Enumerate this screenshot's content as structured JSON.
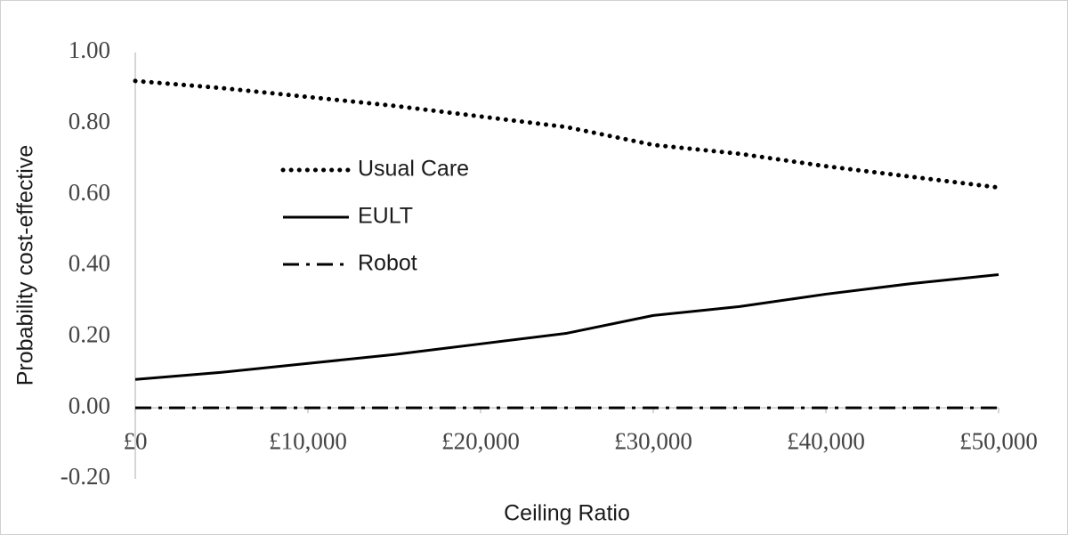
{
  "chart_data": {
    "type": "line",
    "x_label": "Ceiling Ratio",
    "y_label": "Probability cost-effective",
    "x": [
      0,
      5000,
      10000,
      15000,
      20000,
      25000,
      30000,
      35000,
      40000,
      45000,
      50000
    ],
    "series": [
      {
        "name": "Usual Care",
        "color": "#000000",
        "style": "dotted",
        "values": [
          0.92,
          0.9,
          0.875,
          0.85,
          0.82,
          0.79,
          0.74,
          0.715,
          0.68,
          0.65,
          0.62
        ]
      },
      {
        "name": "EULT",
        "color": "#000000",
        "style": "solid",
        "values": [
          0.08,
          0.1,
          0.125,
          0.15,
          0.18,
          0.21,
          0.26,
          0.285,
          0.32,
          0.35,
          0.375
        ]
      },
      {
        "name": "Robot",
        "color": "#000000",
        "style": "dash-dot",
        "values": [
          0,
          0,
          0,
          0,
          0,
          0,
          0,
          0,
          0,
          0,
          0
        ]
      }
    ],
    "xlim": [
      0,
      50000
    ],
    "xticks": [
      {
        "value": 0,
        "label": "£0"
      },
      {
        "value": 10000,
        "label": "£10,000"
      },
      {
        "value": 20000,
        "label": "£20,000"
      },
      {
        "value": 30000,
        "label": "£30,000"
      },
      {
        "value": 40000,
        "label": "£40,000"
      },
      {
        "value": 50000,
        "label": "£50,000"
      }
    ],
    "ylim": [
      -0.2,
      1.0
    ],
    "yticks": [
      {
        "value": -0.2,
        "label": "-0.20"
      },
      {
        "value": 0,
        "label": "0.00"
      },
      {
        "value": 0.2,
        "label": "0.20"
      },
      {
        "value": 0.4,
        "label": "0.40"
      },
      {
        "value": 0.6,
        "label": "0.60"
      },
      {
        "value": 0.8,
        "label": "0.80"
      },
      {
        "value": 1.0,
        "label": "1.00"
      }
    ],
    "grid": false,
    "legend": "left"
  }
}
